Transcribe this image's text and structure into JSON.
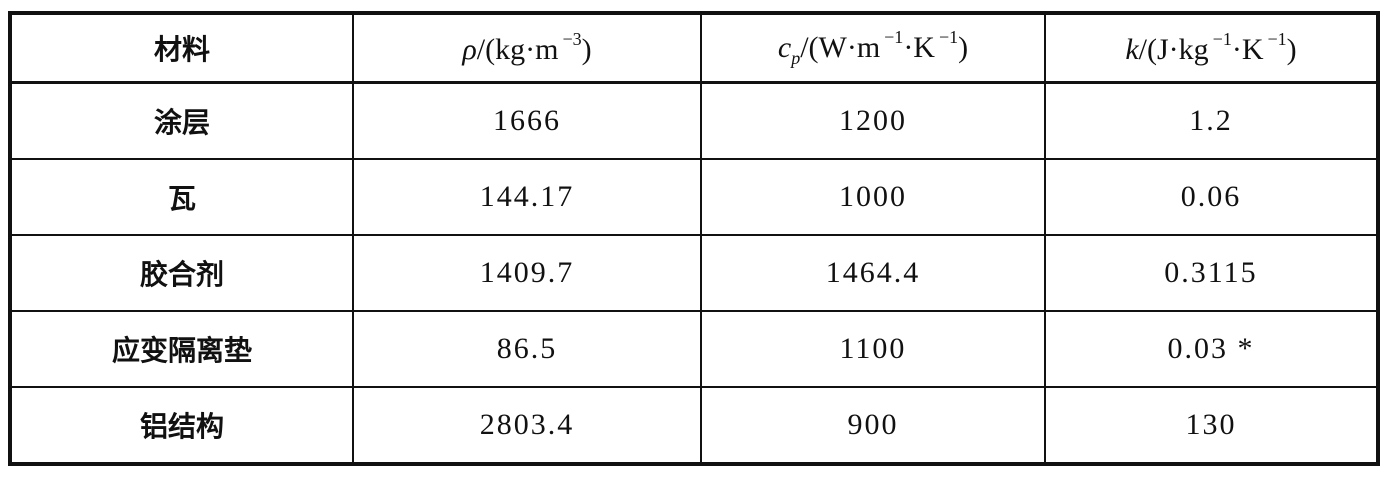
{
  "headers": {
    "material": "材料",
    "density": {
      "symbol": "ρ",
      "unit_pre": "/(kg·m",
      "exp": "−3",
      "unit_post": ")"
    },
    "cp": {
      "symbol": "c",
      "sub": "p",
      "unit_pre": "/(W·m",
      "exp1": "−1",
      "mid": "·K",
      "exp2": "−1",
      "unit_post": ")"
    },
    "k": {
      "symbol": "k",
      "unit_pre": "/(J·kg",
      "exp1": "−1",
      "mid": "·K",
      "exp2": "−1",
      "unit_post": ")"
    }
  },
  "rows": [
    {
      "material": "涂层",
      "density": "1666",
      "cp": "1200",
      "k": "1.2"
    },
    {
      "material": "瓦",
      "density": "144.17",
      "cp": "1000",
      "k": "0.06"
    },
    {
      "material": "胶合剂",
      "density": "1409.7",
      "cp": "1464.4",
      "k": "0.3115"
    },
    {
      "material": "应变隔离垫",
      "density": "86.5",
      "cp": "1100",
      "k": "0.03 *"
    },
    {
      "material": "铝结构",
      "density": "2803.4",
      "cp": "900",
      "k": "130"
    }
  ]
}
